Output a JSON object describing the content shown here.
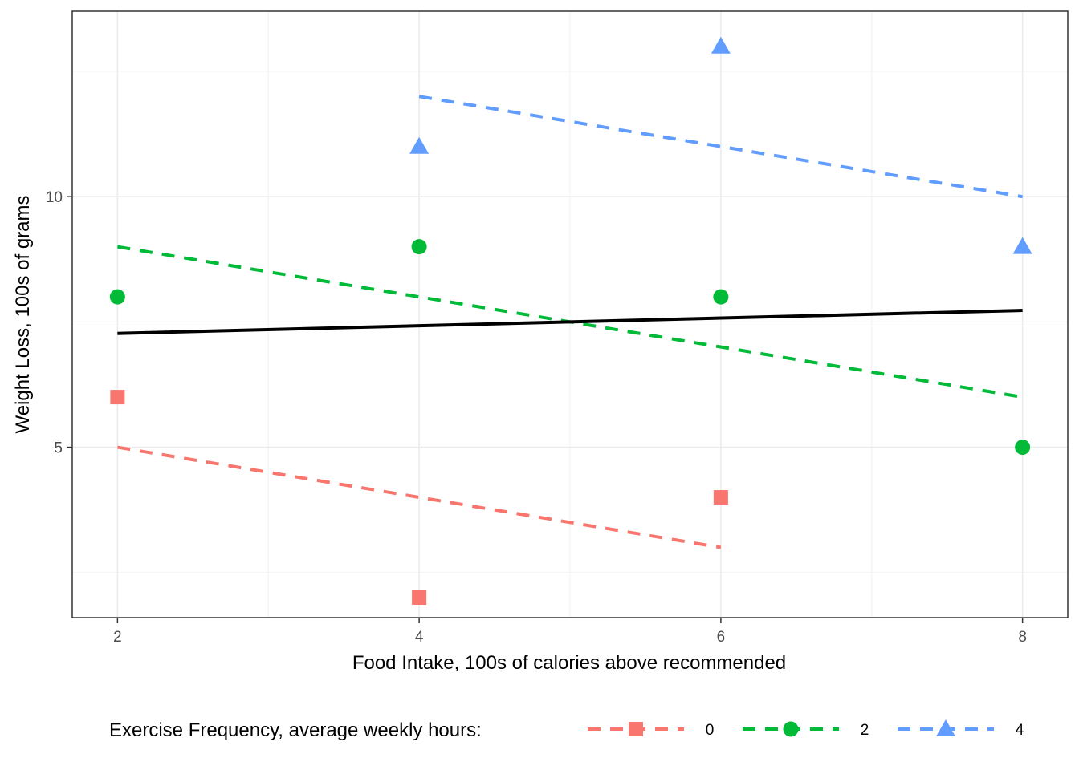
{
  "chart_data": {
    "type": "scatter",
    "xlabel": "Food Intake, 100s of calories above recommended",
    "ylabel": "Weight Loss, 100s of grams",
    "xlim": [
      1.7,
      8.3
    ],
    "ylim": [
      1.6,
      13.7
    ],
    "x_ticks": [
      2,
      4,
      6,
      8
    ],
    "x_tick_labels": [
      "2",
      "4",
      "6",
      "8"
    ],
    "x_minor_gridlines": [
      3,
      5,
      7
    ],
    "y_ticks": [
      5,
      10
    ],
    "y_tick_labels": [
      "5",
      "10"
    ],
    "y_minor_gridlines": [
      2.5,
      7.5,
      12.5
    ],
    "grid": true,
    "legend": {
      "title": "Exercise Frequency, average weekly hours:",
      "position": "bottom"
    },
    "series": [
      {
        "name": "0",
        "color": "#F8766D",
        "marker": "square",
        "points": [
          {
            "x": 2,
            "y": 6
          },
          {
            "x": 4,
            "y": 2
          },
          {
            "x": 6,
            "y": 4
          }
        ],
        "fit_line": {
          "style": "dashed",
          "x": [
            2,
            6
          ],
          "y": [
            5,
            3
          ]
        }
      },
      {
        "name": "2",
        "color": "#00BA38",
        "marker": "circle",
        "points": [
          {
            "x": 2,
            "y": 8
          },
          {
            "x": 4,
            "y": 9
          },
          {
            "x": 6,
            "y": 8
          },
          {
            "x": 8,
            "y": 5
          }
        ],
        "fit_line": {
          "style": "dashed",
          "x": [
            2,
            8
          ],
          "y": [
            9,
            6
          ]
        }
      },
      {
        "name": "4",
        "color": "#619CFF",
        "marker": "triangle",
        "points": [
          {
            "x": 4,
            "y": 11
          },
          {
            "x": 6,
            "y": 13
          },
          {
            "x": 8,
            "y": 9
          }
        ],
        "fit_line": {
          "style": "dashed",
          "x": [
            4,
            8
          ],
          "y": [
            12,
            10
          ]
        }
      }
    ],
    "overall_fit_line": {
      "color": "#000000",
      "style": "solid",
      "x": [
        2,
        8
      ],
      "y": [
        7.27,
        7.73
      ]
    }
  }
}
